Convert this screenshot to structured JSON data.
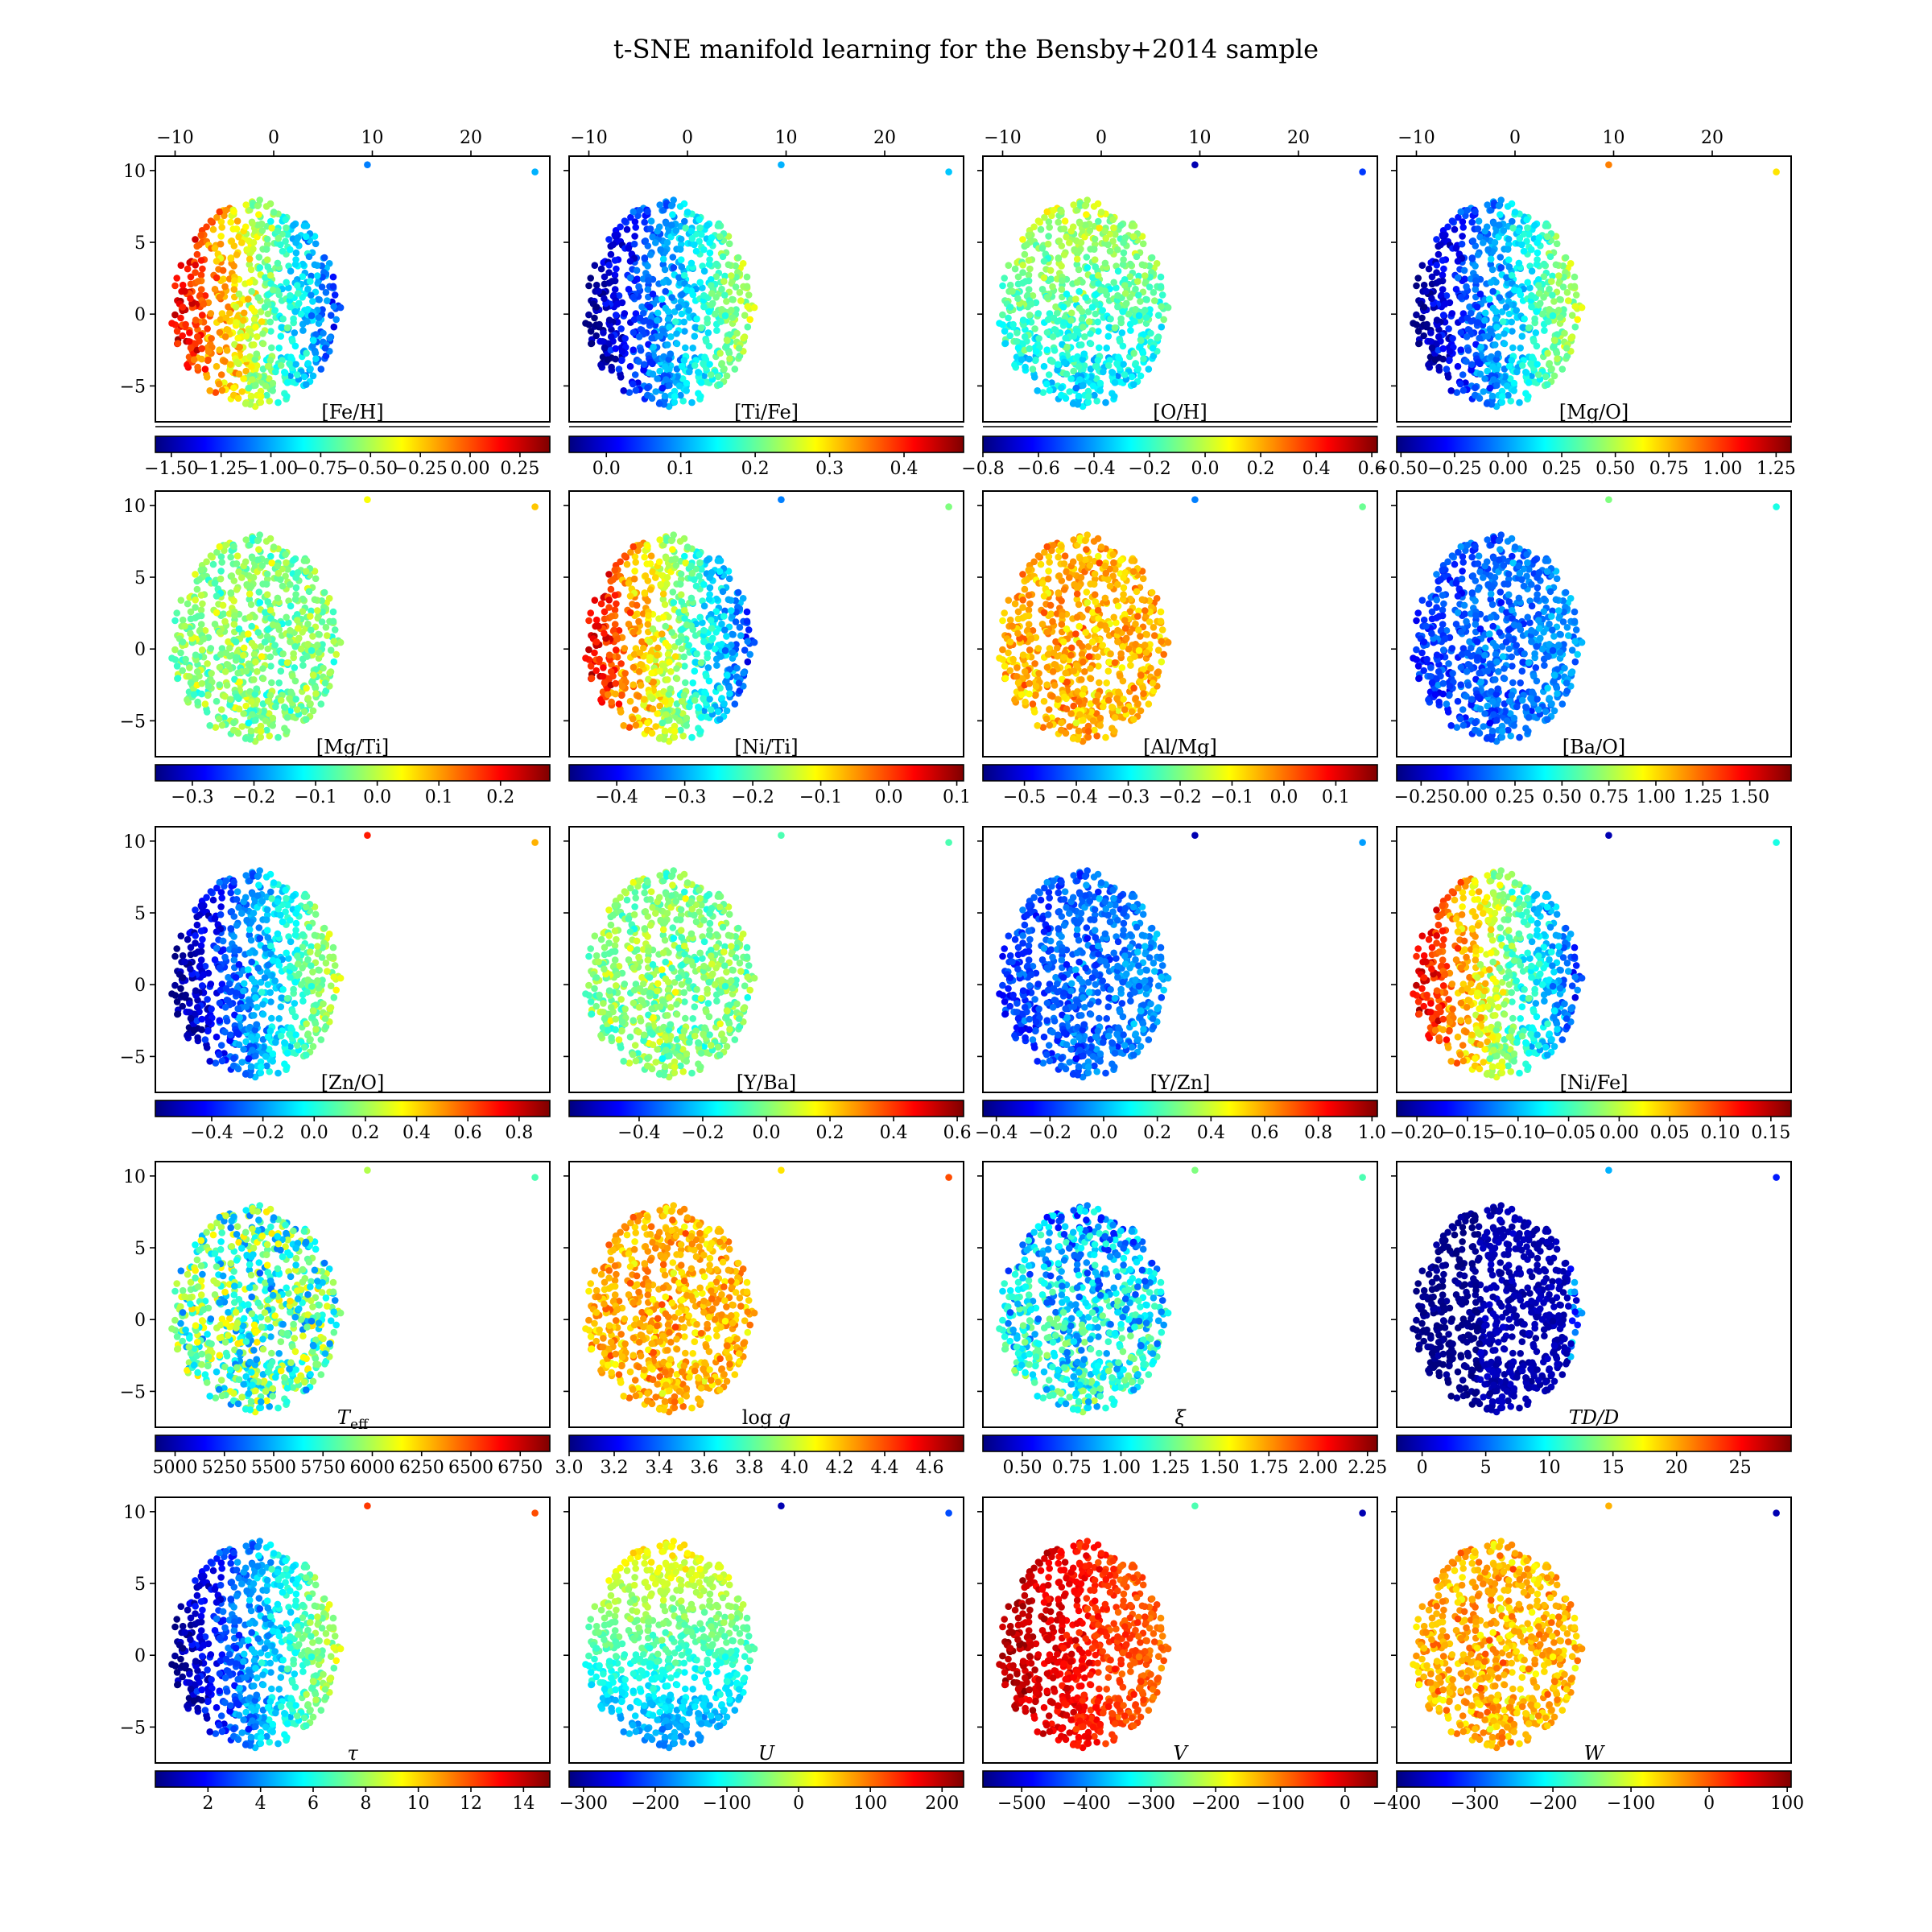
{
  "figure": {
    "title": "t-SNE manifold learning for the Bensby+2014 sample",
    "colormap": "jet",
    "jet_stops": [
      "#00007f",
      "#0000ff",
      "#007fff",
      "#00ffff",
      "#7fff7f",
      "#ffff00",
      "#ff7f00",
      "#ff0000",
      "#7f0000"
    ]
  },
  "chart_data": {
    "type": "scatter",
    "layout": {
      "rows": 5,
      "cols": 4,
      "sharex": true,
      "sharey": true
    },
    "xlim": [
      -12,
      28
    ],
    "ylim": [
      -7.5,
      11
    ],
    "xticks": [
      -10,
      0,
      10,
      20
    ],
    "yticks": [
      -5,
      0,
      5,
      10
    ],
    "x_axis_position": "top (first row only)",
    "y_axis_position": "left (first column only)",
    "colorbar_position": "below each panel",
    "outlier_points": [
      {
        "x": 9.5,
        "y": 10.4
      },
      {
        "x": 26.5,
        "y": 9.9
      }
    ],
    "main_cluster": {
      "x_range": [
        -10.5,
        6.8
      ],
      "y_range": [
        -6.5,
        8
      ],
      "approx_points": 714
    },
    "panels": [
      {
        "label": "[Fe/H]",
        "cmin": -1.58,
        "cmax": 0.4,
        "cticks": [
          -1.5,
          -1.25,
          -1.0,
          -0.75,
          -0.5,
          -0.25,
          0.0,
          0.25
        ],
        "tick_labels": [
          "−1.50",
          "−1.25",
          "−1.00",
          "−0.75",
          "−0.50",
          "−0.25",
          "0.00",
          "0.25"
        ],
        "pattern": "-x",
        "outliers": [
          0.25,
          0.3
        ]
      },
      {
        "label": "[Ti/Fe]",
        "cmin": -0.05,
        "cmax": 0.48,
        "cticks": [
          0.0,
          0.1,
          0.2,
          0.3,
          0.4
        ],
        "tick_labels": [
          "0.0",
          "0.1",
          "0.2",
          "0.3",
          "0.4"
        ],
        "pattern": "x",
        "outliers": [
          0.3,
          0.32
        ]
      },
      {
        "label": "[O/H]",
        "cmin": -0.8,
        "cmax": 0.62,
        "cticks": [
          -0.8,
          -0.6,
          -0.4,
          -0.2,
          0.0,
          0.2,
          0.4,
          0.6
        ],
        "tick_labels": [
          "−0.8",
          "−0.6",
          "−0.4",
          "−0.2",
          "0.0",
          "0.2",
          "0.4",
          "0.6"
        ],
        "pattern": "y",
        "outliers": [
          0.05,
          0.18
        ]
      },
      {
        "label": "[Mg/O]",
        "cmin": -0.52,
        "cmax": 1.32,
        "cticks": [
          -0.5,
          -0.25,
          0.0,
          0.25,
          0.5,
          0.75,
          1.0,
          1.25
        ],
        "tick_labels": [
          "−0.50",
          "−0.25",
          "0.00",
          "0.25",
          "0.50",
          "0.75",
          "1.00",
          "1.25"
        ],
        "pattern": "x",
        "outliers": [
          0.75,
          0.65
        ]
      },
      {
        "label": "[Mg/Ti]",
        "cmin": -0.36,
        "cmax": 0.28,
        "cticks": [
          -0.3,
          -0.2,
          -0.1,
          0.0,
          0.1,
          0.2
        ],
        "tick_labels": [
          "−0.3",
          "−0.2",
          "−0.1",
          "0.0",
          "0.1",
          "0.2"
        ],
        "pattern": "mid",
        "outliers": [
          0.62,
          0.68
        ]
      },
      {
        "label": "[Ni/Ti]",
        "cmin": -0.47,
        "cmax": 0.11,
        "cticks": [
          -0.4,
          -0.3,
          -0.2,
          -0.1,
          0.0,
          0.1
        ],
        "tick_labels": [
          "−0.4",
          "−0.3",
          "−0.2",
          "−0.1",
          "0.0",
          "0.1"
        ],
        "pattern": "-x",
        "outliers": [
          0.25,
          0.5
        ]
      },
      {
        "label": "[Al/Mg]",
        "cmin": -0.58,
        "cmax": 0.18,
        "cticks": [
          -0.5,
          -0.4,
          -0.3,
          -0.2,
          -0.1,
          0.0,
          0.1
        ],
        "tick_labels": [
          "−0.5",
          "−0.4",
          "−0.3",
          "−0.2",
          "−0.1",
          "0.0",
          "0.1"
        ],
        "pattern": "high",
        "outliers": [
          0.25,
          0.48
        ]
      },
      {
        "label": "[Ba/O]",
        "cmin": -0.38,
        "cmax": 1.72,
        "cticks": [
          -0.25,
          0.0,
          0.25,
          0.5,
          0.75,
          1.0,
          1.25,
          1.5
        ],
        "tick_labels": [
          "−0.25",
          "0.00",
          "0.25",
          "0.50",
          "0.75",
          "1.00",
          "1.25",
          "1.50"
        ],
        "pattern": "low",
        "outliers": [
          0.5,
          0.4
        ]
      },
      {
        "label": "[Zn/O]",
        "cmin": -0.62,
        "cmax": 0.92,
        "cticks": [
          -0.4,
          -0.2,
          0.0,
          0.2,
          0.4,
          0.6,
          0.8
        ],
        "tick_labels": [
          "−0.4",
          "−0.2",
          "0.0",
          "0.2",
          "0.4",
          "0.6",
          "0.8"
        ],
        "pattern": "x",
        "outliers": [
          0.85,
          0.7
        ]
      },
      {
        "label": "[Y/Ba]",
        "cmin": -0.62,
        "cmax": 0.62,
        "cticks": [
          -0.4,
          -0.2,
          0.0,
          0.2,
          0.4,
          0.6
        ],
        "tick_labels": [
          "−0.4",
          "−0.2",
          "0.0",
          "0.2",
          "0.4",
          "0.6"
        ],
        "pattern": "mid",
        "outliers": [
          0.45,
          0.45
        ]
      },
      {
        "label": "[Y/Zn]",
        "cmin": -0.45,
        "cmax": 1.02,
        "cticks": [
          -0.4,
          -0.2,
          0.0,
          0.2,
          0.4,
          0.6,
          0.8,
          1.0
        ],
        "tick_labels": [
          "−0.4",
          "−0.2",
          "0.0",
          "0.2",
          "0.4",
          "0.6",
          "0.8",
          "1.0"
        ],
        "pattern": "low",
        "outliers": [
          0.05,
          0.28
        ]
      },
      {
        "label": "[Ni/Fe]",
        "cmin": -0.22,
        "cmax": 0.17,
        "cticks": [
          -0.2,
          -0.15,
          -0.1,
          -0.05,
          0.0,
          0.05,
          0.1,
          0.15
        ],
        "tick_labels": [
          "−0.20",
          "−0.15",
          "−0.10",
          "−0.05",
          "0.00",
          "0.05",
          "0.10",
          "0.15"
        ],
        "pattern": "-x",
        "outliers": [
          0.05,
          0.4
        ]
      },
      {
        "label": "T",
        "label_sub": "eff",
        "cmin": 4900,
        "cmax": 6900,
        "cticks": [
          5000,
          5250,
          5500,
          5750,
          6000,
          6250,
          6500,
          6750
        ],
        "tick_labels": [
          "5000",
          "5250",
          "5500",
          "5750",
          "6000",
          "6250",
          "6500",
          "6750"
        ],
        "pattern": "rand-mid",
        "outliers": [
          0.55,
          0.45
        ]
      },
      {
        "label": "log g",
        "cmin": 3.0,
        "cmax": 4.75,
        "cticks": [
          3.0,
          3.2,
          3.4,
          3.6,
          3.8,
          4.0,
          4.2,
          4.4,
          4.6
        ],
        "tick_labels": [
          "3.0",
          "3.2",
          "3.4",
          "3.6",
          "3.8",
          "4.0",
          "4.2",
          "4.4",
          "4.6"
        ],
        "pattern": "high",
        "outliers": [
          0.65,
          0.8
        ]
      },
      {
        "label": "ξ",
        "cmin": 0.3,
        "cmax": 2.3,
        "cticks": [
          0.5,
          0.75,
          1.0,
          1.25,
          1.5,
          1.75,
          2.0,
          2.25
        ],
        "tick_labels": [
          "0.50",
          "0.75",
          "1.00",
          "1.25",
          "1.50",
          "1.75",
          "2.00",
          "2.25"
        ],
        "pattern": "rand-low",
        "outliers": [
          0.5,
          0.45
        ]
      },
      {
        "label": "TD/D",
        "cmin": -2,
        "cmax": 29,
        "cticks": [
          0,
          5,
          10,
          15,
          20,
          25
        ],
        "tick_labels": [
          "0",
          "5",
          "10",
          "15",
          "20",
          "25"
        ],
        "pattern": "vlow",
        "outliers": [
          0.3,
          0.15
        ]
      },
      {
        "label": "τ",
        "cmin": 0.0,
        "cmax": 15.0,
        "cticks": [
          2,
          4,
          6,
          8,
          10,
          12,
          14
        ],
        "tick_labels": [
          "2",
          "4",
          "6",
          "8",
          "10",
          "12",
          "14"
        ],
        "pattern": "x",
        "outliers": [
          0.82,
          0.8
        ]
      },
      {
        "label": "U",
        "cmin": -320,
        "cmax": 230,
        "cticks": [
          -300,
          -200,
          -100,
          0,
          100,
          200
        ],
        "tick_labels": [
          "−300",
          "−200",
          "−100",
          "0",
          "100",
          "200"
        ],
        "pattern": "-y",
        "outliers": [
          0.05,
          0.2
        ]
      },
      {
        "label": "V",
        "cmin": -560,
        "cmax": 50,
        "cticks": [
          -500,
          -400,
          -300,
          -200,
          -100,
          0
        ],
        "tick_labels": [
          "−500",
          "−400",
          "−300",
          "−200",
          "−100",
          "0"
        ],
        "pattern": "vhigh",
        "outliers": [
          0.45,
          0.05
        ]
      },
      {
        "label": "W",
        "cmin": -400,
        "cmax": 105,
        "cticks": [
          -400,
          -300,
          -200,
          -100,
          0,
          100
        ],
        "tick_labels": [
          "−400",
          "−300",
          "−200",
          "−100",
          "0",
          "100"
        ],
        "pattern": "high",
        "outliers": [
          0.7,
          0.05
        ]
      }
    ]
  }
}
